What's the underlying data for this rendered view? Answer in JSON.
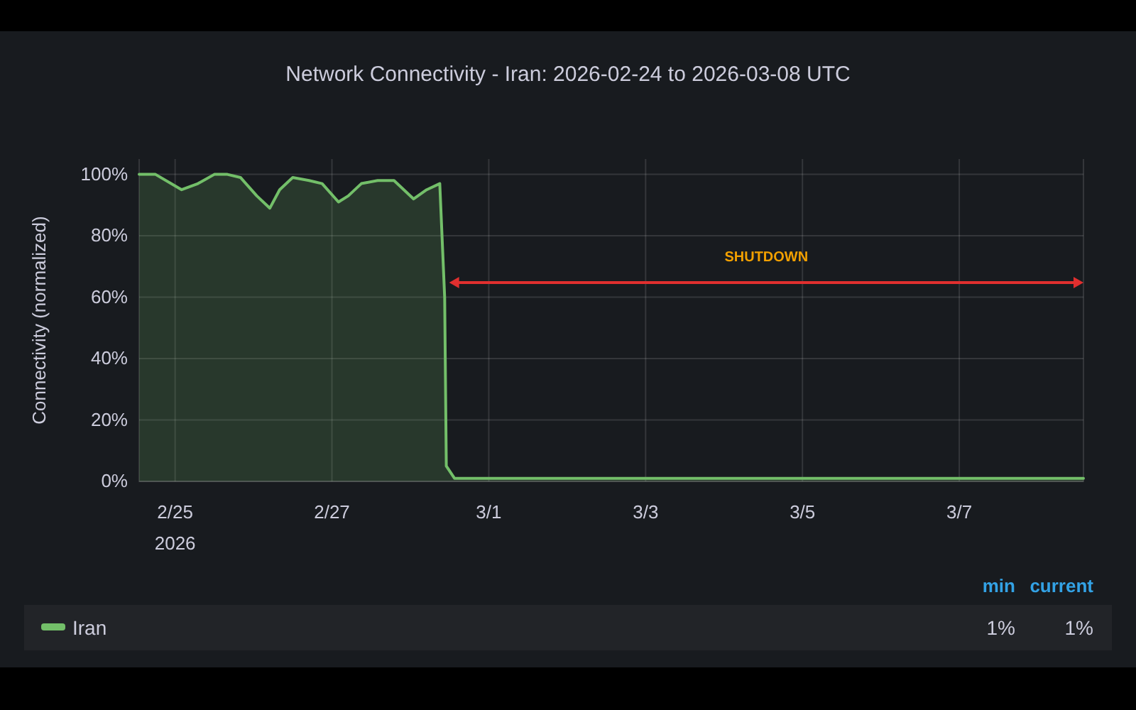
{
  "chart_data": {
    "type": "area",
    "title": "Network Connectivity - Iran: 2026-02-24 to 2026-03-08 UTC",
    "ylabel": "Connectivity (normalized)",
    "x": [
      "2026-02-24T13:00",
      "2026-02-24T18:00",
      "2026-02-25T02:00",
      "2026-02-25T07:00",
      "2026-02-25T12:00",
      "2026-02-25T16:00",
      "2026-02-25T20:00",
      "2026-02-26T01:00",
      "2026-02-26T05:00",
      "2026-02-26T08:00",
      "2026-02-26T12:00",
      "2026-02-26T17:00",
      "2026-02-26T21:00",
      "2026-02-27T02:00",
      "2026-02-27T05:00",
      "2026-02-27T09:00",
      "2026-02-27T14:00",
      "2026-02-27T19:00",
      "2026-02-28T01:00",
      "2026-02-28T05:00",
      "2026-02-28T09:00",
      "2026-02-28T10:30",
      "2026-02-28T11:00",
      "2026-02-28T13:30",
      "2026-03-01T00:00",
      "2026-03-03T00:00",
      "2026-03-05T00:00",
      "2026-03-07T00:00",
      "2026-03-08T14:00"
    ],
    "series": [
      {
        "name": "Iran",
        "color": "#73bf69",
        "values": [
          100,
          100,
          95,
          97,
          100,
          100,
          99,
          93,
          89,
          95,
          99,
          98,
          97,
          91,
          93,
          97,
          98,
          98,
          92,
          95,
          97,
          60,
          5,
          1,
          1,
          1,
          1,
          1,
          1
        ]
      }
    ],
    "xlim": [
      "2026-02-24T13:00",
      "2026-03-08T14:00"
    ],
    "xticks": [
      {
        "value": "2026-02-25",
        "label": "2/25\n2026"
      },
      {
        "value": "2026-02-27",
        "label": "2/27"
      },
      {
        "value": "2026-03-01",
        "label": "3/1"
      },
      {
        "value": "2026-03-03",
        "label": "3/3"
      },
      {
        "value": "2026-03-05",
        "label": "3/5"
      },
      {
        "value": "2026-03-07",
        "label": "3/7"
      }
    ],
    "ylim": [
      0,
      105
    ],
    "yticks": [
      {
        "value": 0,
        "label": "0%"
      },
      {
        "value": 20,
        "label": "20%"
      },
      {
        "value": 40,
        "label": "40%"
      },
      {
        "value": 60,
        "label": "60%"
      },
      {
        "value": 80,
        "label": "80%"
      },
      {
        "value": 100,
        "label": "100%"
      }
    ],
    "grid": true,
    "legend": "bottom",
    "annotations": [
      "SHUTDOWN",
      "min",
      "current",
      "1%",
      "1%"
    ]
  }
}
